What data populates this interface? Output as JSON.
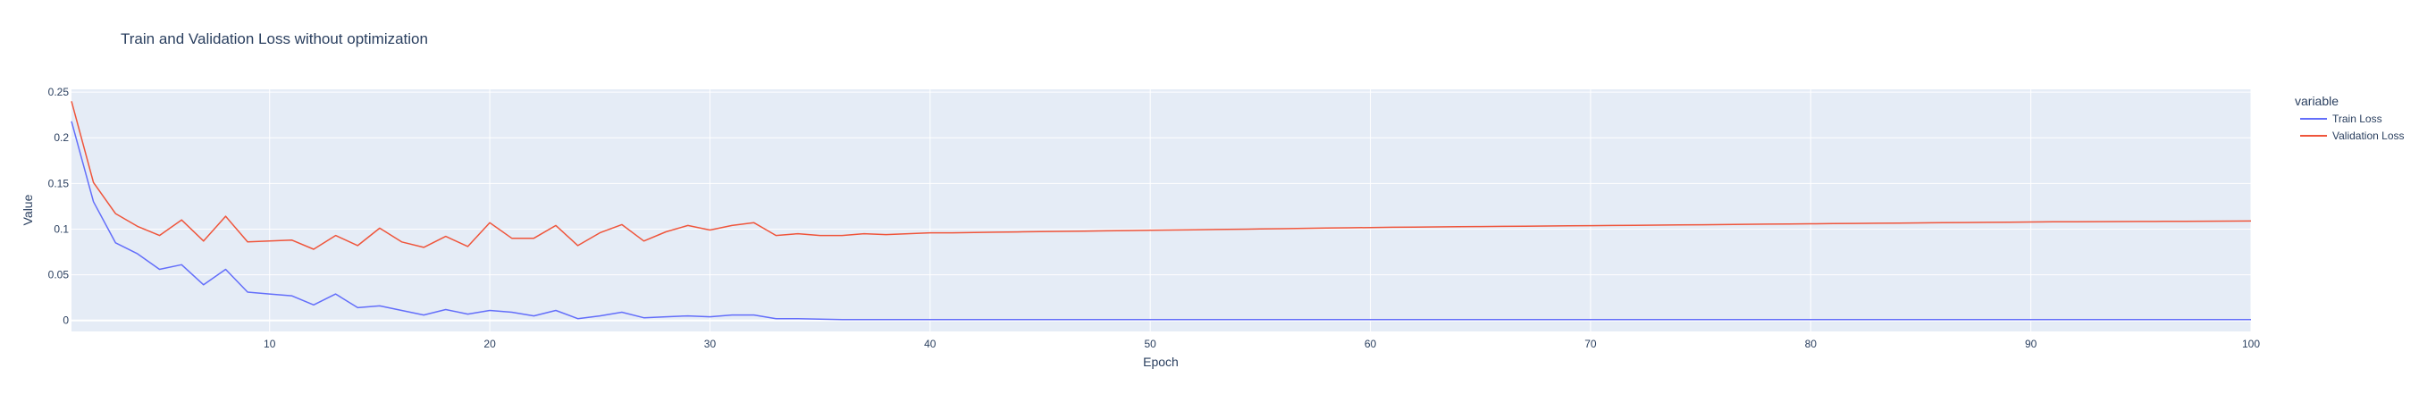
{
  "chart_data": {
    "type": "line",
    "title": "Train and Validation Loss without optimization",
    "xlabel": "Epoch",
    "ylabel": "Value",
    "xlim": [
      1,
      100
    ],
    "ylim": [
      -0.012,
      0.253
    ],
    "x_ticks": [
      10,
      20,
      30,
      40,
      50,
      60,
      70,
      80,
      90,
      100
    ],
    "y_ticks": [
      0,
      0.05,
      0.1,
      0.15,
      0.2,
      0.25
    ],
    "y_tick_labels": [
      "0",
      "0.05",
      "0.1",
      "0.15",
      "0.2",
      "0.25"
    ],
    "grid": true,
    "legend": {
      "title": "variable",
      "position": "right"
    },
    "x": [
      1,
      2,
      3,
      4,
      5,
      6,
      7,
      8,
      9,
      10,
      11,
      12,
      13,
      14,
      15,
      16,
      17,
      18,
      19,
      20,
      21,
      22,
      23,
      24,
      25,
      26,
      27,
      28,
      29,
      30,
      31,
      32,
      33,
      34,
      35,
      36,
      37,
      38,
      39,
      40,
      41,
      42,
      43,
      44,
      45,
      46,
      47,
      48,
      49,
      50,
      51,
      52,
      53,
      54,
      55,
      56,
      57,
      58,
      59,
      60,
      61,
      62,
      63,
      64,
      65,
      66,
      67,
      68,
      69,
      70,
      71,
      72,
      73,
      74,
      75,
      76,
      77,
      78,
      79,
      80,
      81,
      82,
      83,
      84,
      85,
      86,
      87,
      88,
      89,
      90,
      91,
      92,
      93,
      94,
      95,
      96,
      97,
      98,
      99,
      100
    ],
    "series": [
      {
        "name": "Train Loss",
        "color": "#636efa",
        "values": [
          0.218,
          0.13,
          0.085,
          0.073,
          0.056,
          0.061,
          0.039,
          0.056,
          0.031,
          0.029,
          0.027,
          0.017,
          0.029,
          0.014,
          0.016,
          0.011,
          0.006,
          0.012,
          0.007,
          0.011,
          0.009,
          0.005,
          0.011,
          0.002,
          0.005,
          0.009,
          0.003,
          0.004,
          0.005,
          0.004,
          0.006,
          0.006,
          0.002,
          0.002,
          0.0015,
          0.001,
          0.001,
          0.001,
          0.001,
          0.001,
          0.001,
          0.001,
          0.001,
          0.001,
          0.001,
          0.001,
          0.001,
          0.001,
          0.001,
          0.001,
          0.001,
          0.001,
          0.001,
          0.001,
          0.001,
          0.001,
          0.001,
          0.001,
          0.001,
          0.001,
          0.001,
          0.001,
          0.001,
          0.001,
          0.001,
          0.001,
          0.001,
          0.001,
          0.001,
          0.001,
          0.001,
          0.001,
          0.001,
          0.001,
          0.001,
          0.001,
          0.001,
          0.001,
          0.001,
          0.001,
          0.001,
          0.001,
          0.001,
          0.001,
          0.001,
          0.001,
          0.001,
          0.001,
          0.001,
          0.001,
          0.001,
          0.001,
          0.001,
          0.001,
          0.001,
          0.001,
          0.001,
          0.001,
          0.001,
          0.001
        ]
      },
      {
        "name": "Validation Loss",
        "color": "#ef553b",
        "values": [
          0.24,
          0.151,
          0.117,
          0.103,
          0.093,
          0.11,
          0.087,
          0.114,
          0.086,
          0.087,
          0.088,
          0.078,
          0.093,
          0.082,
          0.101,
          0.086,
          0.08,
          0.092,
          0.081,
          0.107,
          0.09,
          0.09,
          0.104,
          0.082,
          0.096,
          0.105,
          0.087,
          0.097,
          0.104,
          0.099,
          0.104,
          0.107,
          0.093,
          0.095,
          0.093,
          0.093,
          0.095,
          0.094,
          0.095,
          0.096,
          0.096,
          0.0963,
          0.0966,
          0.0969,
          0.0972,
          0.0975,
          0.0978,
          0.0981,
          0.0984,
          0.0987,
          0.099,
          0.0993,
          0.0996,
          0.0999,
          0.1002,
          0.1005,
          0.1008,
          0.1011,
          0.1014,
          0.1017,
          0.102,
          0.1022,
          0.1024,
          0.1026,
          0.1028,
          0.103,
          0.1032,
          0.1034,
          0.1036,
          0.1038,
          0.104,
          0.1042,
          0.1044,
          0.1046,
          0.1048,
          0.105,
          0.1052,
          0.1054,
          0.1056,
          0.1058,
          0.106,
          0.1062,
          0.1064,
          0.1066,
          0.1068,
          0.107,
          0.1072,
          0.1074,
          0.1076,
          0.1078,
          0.108,
          0.1081,
          0.1082,
          0.1083,
          0.1084,
          0.1085,
          0.1086,
          0.1087,
          0.1088,
          0.1089
        ]
      }
    ]
  }
}
